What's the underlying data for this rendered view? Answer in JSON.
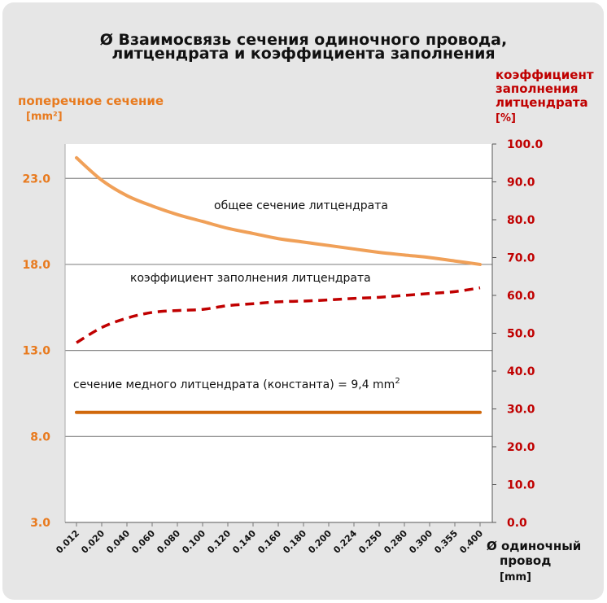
{
  "chart_data": {
    "type": "line",
    "title_line1": "Ø Взаимосвязь сечения одиночного провода,",
    "title_line2": "литцендрата и коэффициента заполнения",
    "left_axis": {
      "label": "поперечное сечение",
      "unit": "[mm²]",
      "ticks": [
        "3.0",
        "8.0",
        "13.0",
        "18.0",
        "23.0"
      ],
      "range": [
        3.0,
        25.0
      ]
    },
    "right_axis": {
      "label_line1": "коэффициент",
      "label_line2": "заполнения",
      "label_line3": "литцендрата",
      "unit": "[%]",
      "ticks": [
        "0.0",
        "10.0",
        "20.0",
        "30.0",
        "40.0",
        "50.0",
        "60.0",
        "70.0",
        "80.0",
        "90.0",
        "100.0"
      ],
      "range": [
        0,
        100
      ]
    },
    "x_axis": {
      "label_line1": "Ø одиночный",
      "label_line2": "провод",
      "unit": "[mm]",
      "categories": [
        "0.012",
        "0.020",
        "0.040",
        "0.060",
        "0.080",
        "0.100",
        "0.120",
        "0.140",
        "0.160",
        "0.180",
        "0.200",
        "0.224",
        "0.250",
        "0.280",
        "0.300",
        "0.355",
        "0.400"
      ]
    },
    "series": [
      {
        "name": "общее сечение литцендрата",
        "axis": "left",
        "style": "solid",
        "color": "#f0a058",
        "values": [
          24.2,
          22.9,
          22.0,
          21.4,
          20.9,
          20.5,
          20.1,
          19.8,
          19.5,
          19.3,
          19.1,
          18.9,
          18.7,
          18.55,
          18.4,
          18.2,
          18.0
        ]
      },
      {
        "name": "коэффициент заполнения литцендрата",
        "axis": "right",
        "style": "dashed",
        "color": "#c00000",
        "values": [
          47.5,
          51.5,
          54.0,
          55.5,
          56.0,
          56.3,
          57.3,
          57.8,
          58.3,
          58.5,
          58.8,
          59.2,
          59.5,
          60.0,
          60.5,
          61.0,
          62.0
        ]
      },
      {
        "name": "сечение медного литцендрата (константа) = 9,4 mm",
        "name_sup": "2",
        "axis": "left",
        "style": "solid",
        "color": "#d0680c",
        "values": [
          9.4,
          9.4,
          9.4,
          9.4,
          9.4,
          9.4,
          9.4,
          9.4,
          9.4,
          9.4,
          9.4,
          9.4,
          9.4,
          9.4,
          9.4,
          9.4,
          9.4
        ]
      }
    ],
    "grid": true
  }
}
